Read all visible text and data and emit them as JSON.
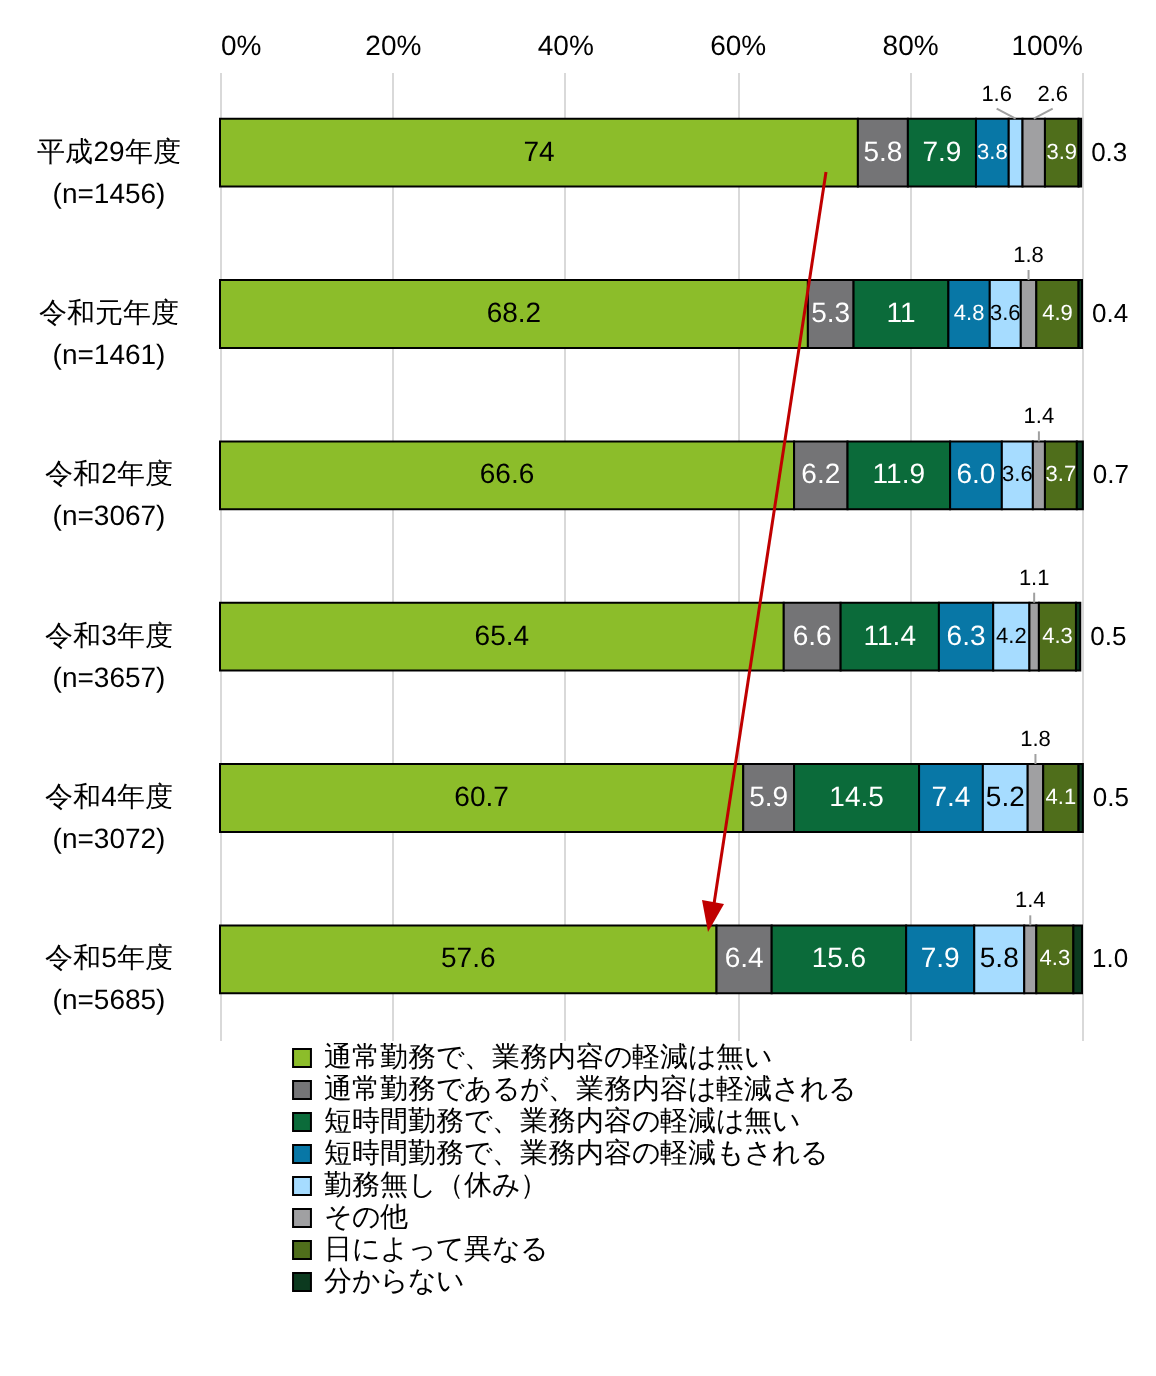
{
  "chart_data": {
    "type": "bar",
    "orientation": "horizontal",
    "stacked": true,
    "categories": [
      "平成29年度\n(n=1456)",
      "令和元年度\n(n=1461)",
      "令和2年度\n(n=3067)",
      "令和3年度\n(n=3657)",
      "令和4年度\n(n=3072)",
      "令和5年度\n(n=5685)"
    ],
    "xlim": [
      0,
      100
    ],
    "xticks": [
      {
        "value": 0,
        "label": "0%"
      },
      {
        "value": 20,
        "label": "20%"
      },
      {
        "value": 40,
        "label": "40%"
      },
      {
        "value": 60,
        "label": "60%"
      },
      {
        "value": 80,
        "label": "80%"
      },
      {
        "value": 100,
        "label": "100%"
      }
    ],
    "grid": true,
    "legend": "bottom",
    "series": [
      {
        "name": "通常勤務で、業務内容の軽減は無い",
        "color": "#8cbd2a",
        "values": [
          74,
          68.2,
          66.6,
          65.4,
          60.7,
          57.6
        ],
        "value_labels": [
          "74",
          "68.2",
          "66.6",
          "65.4",
          "60.7",
          "57.6"
        ]
      },
      {
        "name": "通常勤務であるが、業務内容は軽減される",
        "color": "#747476",
        "values": [
          5.8,
          5.3,
          6.2,
          6.6,
          5.9,
          6.4
        ],
        "value_labels": [
          "5.8",
          "5.3",
          "6.2",
          "6.6",
          "5.9",
          "6.4"
        ]
      },
      {
        "name": "短時間勤務で、業務内容の軽減は無い",
        "color": "#0b6b3a",
        "values": [
          7.9,
          11,
          11.9,
          11.4,
          14.5,
          15.6
        ],
        "value_labels": [
          "7.9",
          "11",
          "11.9",
          "11.4",
          "14.5",
          "15.6"
        ]
      },
      {
        "name": "短時間勤務で、業務内容の軽減もされる",
        "color": "#0877a6",
        "values": [
          3.8,
          4.8,
          6.0,
          6.3,
          7.4,
          7.9
        ],
        "value_labels": [
          "3.8",
          "4.8",
          "6.0",
          "6.3",
          "7.4",
          "7.9"
        ]
      },
      {
        "name": "勤務無し（休み）",
        "color": "#a6dcff",
        "values": [
          1.6,
          3.6,
          3.6,
          4.2,
          5.2,
          5.8
        ],
        "value_labels": [
          "1.6",
          "3.6",
          "3.6",
          "4.2",
          "5.2",
          "5.8"
        ]
      },
      {
        "name": "その他",
        "color": "#a0a0a2",
        "values": [
          2.6,
          1.8,
          1.4,
          1.1,
          1.8,
          1.4
        ],
        "value_labels": [
          "2.6",
          "1.8",
          "1.4",
          "1.1",
          "1.8",
          "1.4"
        ]
      },
      {
        "name": "日によって異なる",
        "color": "#4f6e1b",
        "values": [
          3.9,
          4.9,
          3.7,
          4.3,
          4.1,
          4.3
        ],
        "value_labels": [
          "3.9",
          "4.9",
          "3.7",
          "4.3",
          "4.1",
          "4.3"
        ]
      },
      {
        "name": "分からない",
        "color": "#0c3a1f",
        "values": [
          0.3,
          0.4,
          0.7,
          0.5,
          0.5,
          1.0
        ],
        "value_labels": [
          "0.3",
          "0.4",
          "0.7",
          "0.5",
          "0.5",
          "1.0"
        ]
      }
    ]
  }
}
